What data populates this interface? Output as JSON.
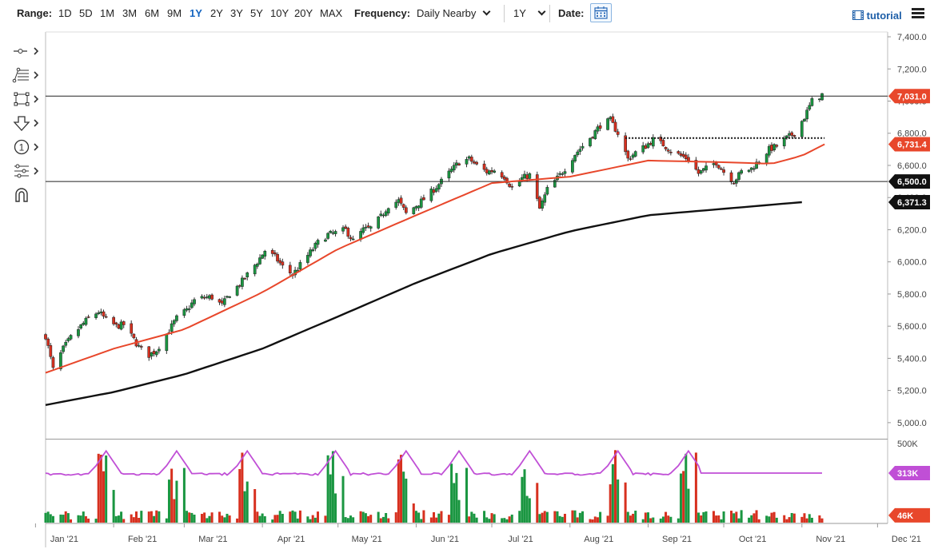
{
  "toolbar": {
    "range_label": "Range:",
    "ranges": [
      "1D",
      "5D",
      "1M",
      "3M",
      "6M",
      "9M",
      "1Y",
      "2Y",
      "3Y",
      "5Y",
      "10Y",
      "20Y",
      "MAX"
    ],
    "active_range": "1Y",
    "frequency_label": "Frequency:",
    "frequency_value": "Daily Nearby",
    "period_value": "1Y",
    "date_label": "Date:",
    "tutorial_label": "tutorial"
  },
  "tools": [
    "crosshair-tool",
    "fibonacci-tool",
    "rectangle-tool",
    "arrow-down-tool",
    "number-tool",
    "settings-tool",
    "magnet-tool"
  ],
  "colors": {
    "up": "#1a9641",
    "down": "#d7301f",
    "sma_short": "#e8472b",
    "sma_long": "#111111",
    "vol_ma": "#c04fd6",
    "price_tag": "#e8472b",
    "black_tag": "#111111",
    "purple_tag": "#c04fd6"
  },
  "chart_data": {
    "type": "candlestick",
    "x_tick_labels": [
      "Jan '21",
      "Feb '21",
      "Mar '21",
      "Apr '21",
      "May '21",
      "Jun '21",
      "Jul '21",
      "Aug '21",
      "Sep '21",
      "Oct '21",
      "Nov '21",
      "Dec '21"
    ],
    "y_ticks": [
      5000,
      5200,
      5400,
      5600,
      5800,
      6000,
      6200,
      6400,
      6600,
      6800,
      7000,
      7200,
      7400
    ],
    "y_tick_labels": [
      "5,000.0",
      "5,200.0",
      "5,400.0",
      "5,600.0",
      "5,800.0",
      "6,000.0",
      "6,200.0",
      "6,400.0",
      "6,600.0",
      "6,800.0",
      "7,000.0",
      "7,200.0",
      "7,400.0"
    ],
    "ylim": [
      4900,
      7420
    ],
    "x_start": "2021-01-05",
    "x_end": "2021-12-05",
    "price_path": [
      [
        "2021-01-05",
        5540
      ],
      [
        "2021-01-08",
        5330
      ],
      [
        "2021-01-12",
        5460
      ],
      [
        "2021-01-15",
        5530
      ],
      [
        "2021-01-19",
        5600
      ],
      [
        "2021-01-22",
        5650
      ],
      [
        "2021-01-26",
        5690
      ],
      [
        "2021-01-29",
        5640
      ],
      [
        "2021-02-02",
        5600
      ],
      [
        "2021-02-05",
        5610
      ],
      [
        "2021-02-08",
        5540
      ],
      [
        "2021-02-11",
        5470
      ],
      [
        "2021-02-15",
        5420
      ],
      [
        "2021-02-18",
        5450
      ],
      [
        "2021-02-22",
        5550
      ],
      [
        "2021-02-26",
        5650
      ],
      [
        "2021-03-02",
        5700
      ],
      [
        "2021-03-05",
        5760
      ],
      [
        "2021-03-09",
        5780
      ],
      [
        "2021-03-12",
        5780
      ],
      [
        "2021-03-16",
        5730
      ],
      [
        "2021-03-19",
        5800
      ],
      [
        "2021-03-23",
        5860
      ],
      [
        "2021-03-26",
        5920
      ],
      [
        "2021-03-30",
        6000
      ],
      [
        "2021-04-02",
        6070
      ],
      [
        "2021-04-06",
        6030
      ],
      [
        "2021-04-09",
        5970
      ],
      [
        "2021-04-13",
        5920
      ],
      [
        "2021-04-16",
        5980
      ],
      [
        "2021-04-20",
        6060
      ],
      [
        "2021-04-23",
        6120
      ],
      [
        "2021-04-27",
        6170
      ],
      [
        "2021-04-30",
        6180
      ],
      [
        "2021-05-04",
        6200
      ],
      [
        "2021-05-07",
        6130
      ],
      [
        "2021-05-11",
        6200
      ],
      [
        "2021-05-14",
        6210
      ],
      [
        "2021-05-18",
        6280
      ],
      [
        "2021-05-21",
        6350
      ],
      [
        "2021-05-25",
        6380
      ],
      [
        "2021-05-28",
        6300
      ],
      [
        "2021-06-01",
        6350
      ],
      [
        "2021-06-04",
        6390
      ],
      [
        "2021-06-08",
        6450
      ],
      [
        "2021-06-11",
        6500
      ],
      [
        "2021-06-15",
        6570
      ],
      [
        "2021-06-18",
        6620
      ],
      [
        "2021-06-22",
        6640
      ],
      [
        "2021-06-25",
        6600
      ],
      [
        "2021-06-29",
        6560
      ],
      [
        "2021-07-02",
        6570
      ],
      [
        "2021-07-06",
        6530
      ],
      [
        "2021-07-09",
        6460
      ],
      [
        "2021-07-13",
        6520
      ],
      [
        "2021-07-16",
        6540
      ],
      [
        "2021-07-20",
        6330
      ],
      [
        "2021-07-23",
        6450
      ],
      [
        "2021-07-27",
        6520
      ],
      [
        "2021-07-30",
        6580
      ],
      [
        "2021-08-03",
        6670
      ],
      [
        "2021-08-06",
        6720
      ],
      [
        "2021-08-10",
        6790
      ],
      [
        "2021-08-13",
        6850
      ],
      [
        "2021-08-17",
        6880
      ],
      [
        "2021-08-20",
        6800
      ],
      [
        "2021-08-24",
        6640
      ],
      [
        "2021-08-27",
        6680
      ],
      [
        "2021-08-31",
        6720
      ],
      [
        "2021-09-03",
        6760
      ],
      [
        "2021-09-07",
        6730
      ],
      [
        "2021-09-10",
        6690
      ],
      [
        "2021-09-14",
        6660
      ],
      [
        "2021-09-17",
        6640
      ],
      [
        "2021-09-21",
        6550
      ],
      [
        "2021-09-24",
        6580
      ],
      [
        "2021-09-28",
        6620
      ],
      [
        "2021-10-01",
        6560
      ],
      [
        "2021-10-05",
        6500
      ],
      [
        "2021-10-08",
        6560
      ],
      [
        "2021-10-12",
        6580
      ],
      [
        "2021-10-15",
        6630
      ],
      [
        "2021-10-19",
        6700
      ],
      [
        "2021-10-22",
        6720
      ],
      [
        "2021-10-26",
        6770
      ],
      [
        "2021-10-29",
        6800
      ],
      [
        "2021-11-02",
        6900
      ],
      [
        "2021-11-05",
        7000
      ],
      [
        "2021-11-09",
        7040
      ]
    ],
    "series": [
      {
        "name": "",
        "kind": "sma_short",
        "values": [
          [
            "2021-01-05",
            5310
          ],
          [
            "2021-02-01",
            5460
          ],
          [
            "2021-03-01",
            5580
          ],
          [
            "2021-04-01",
            5810
          ],
          [
            "2021-05-01",
            6080
          ],
          [
            "2021-06-01",
            6290
          ],
          [
            "2021-07-01",
            6490
          ],
          [
            "2021-08-01",
            6530
          ],
          [
            "2021-09-01",
            6630
          ],
          [
            "2021-10-01",
            6620
          ],
          [
            "2021-10-20",
            6610
          ],
          [
            "2021-11-01",
            6660
          ],
          [
            "2021-11-10",
            6731.4
          ]
        ]
      },
      {
        "name": "",
        "kind": "sma_long",
        "values": [
          [
            "2021-01-05",
            5110
          ],
          [
            "2021-02-01",
            5190
          ],
          [
            "2021-03-01",
            5300
          ],
          [
            "2021-04-01",
            5460
          ],
          [
            "2021-05-01",
            5660
          ],
          [
            "2021-06-01",
            5870
          ],
          [
            "2021-07-01",
            6050
          ],
          [
            "2021-08-01",
            6190
          ],
          [
            "2021-09-01",
            6290
          ],
          [
            "2021-10-01",
            6330
          ],
          [
            "2021-11-01",
            6371.3
          ]
        ]
      }
    ],
    "horizontal_lines": [
      {
        "value": 7031.0,
        "label": "7,031.0",
        "style": "solid"
      },
      {
        "value": 6500.0,
        "label": "6,500.0",
        "style": "solid"
      }
    ],
    "trendline": {
      "from": [
        "2021-08-23",
        6770
      ],
      "to": [
        "2021-11-10",
        6770
      ],
      "style": "dotted"
    },
    "price_tags": [
      {
        "value": 7031.0,
        "label": "7,031.0",
        "color": "#e8472b"
      },
      {
        "value": 6731.4,
        "label": "6,731.4",
        "color": "#e8472b"
      },
      {
        "value": 6500.0,
        "label": "6,500.0",
        "color": "#111111"
      },
      {
        "value": 6371.3,
        "label": "6,371.3",
        "color": "#111111"
      }
    ],
    "volume": {
      "y_tick_labels": [
        "500K"
      ],
      "ylim": [
        0,
        520000
      ],
      "ma_tag": "313K",
      "last_tag": "46K",
      "ma_last": 313000,
      "last_value": 46000
    }
  }
}
